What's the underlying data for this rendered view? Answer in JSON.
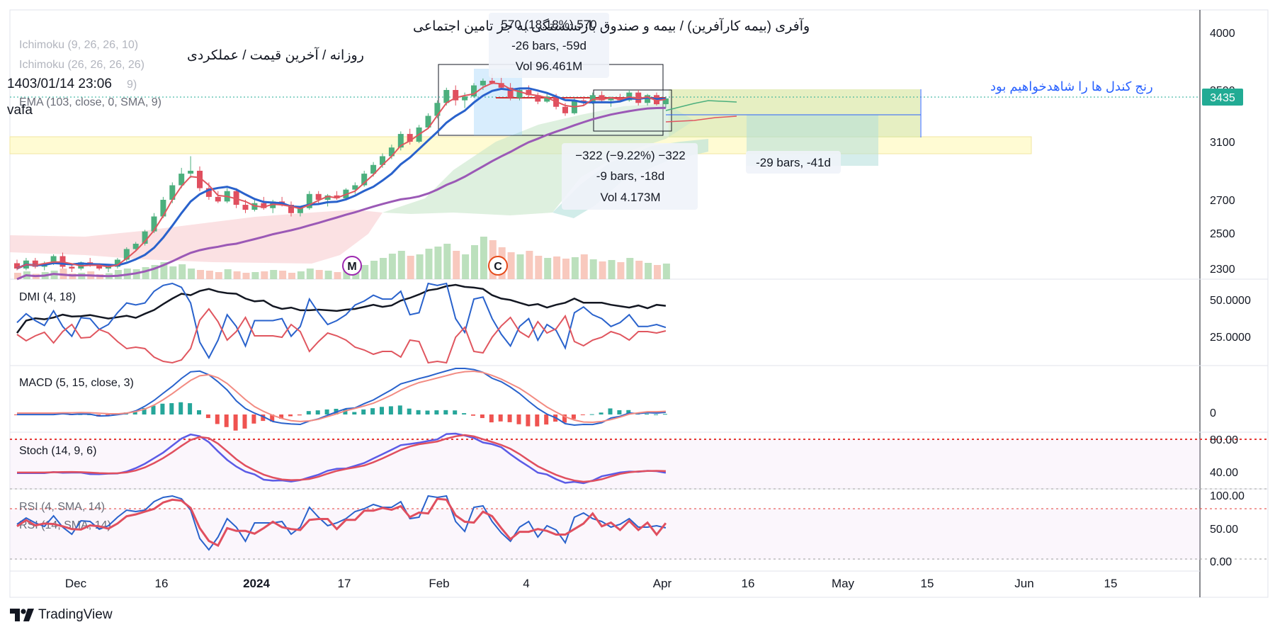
{
  "header": {
    "title": "وآفری (بیمه کارآفرین) / بیمه و صندوق بازنشستگی به جز تامین اجتماعی",
    "subtitle": "روزانه / آخرین قیمت / عملکردی",
    "datetime": "1403/01/14 23:06",
    "author": "vafa",
    "indicator_ichimoku_1": "Ichimoku (9, 26, 26, 10)",
    "indicator_ichimoku_2": "Ichimoku (26, 26, 26, 26)",
    "indicator_ema": "EMA (103, close, 0, SMA, 9)",
    "ema_value_hint": "9)"
  },
  "price_axis": {
    "ticks": [
      "4000",
      "3500",
      "3100",
      "2700",
      "2500",
      "2300"
    ],
    "tick_values": [
      4000,
      3500,
      3100,
      2700,
      2500,
      2300
    ],
    "current_price": "3435",
    "current_price_color": "#22ab94"
  },
  "time_axis": {
    "ticks": [
      "Dec",
      "16",
      "2024",
      "17",
      "Feb",
      "4",
      "Apr",
      "16",
      "May",
      "15",
      "Jun",
      "15"
    ]
  },
  "annotations": {
    "measure_up": {
      "line1": "570 (18.18%) 570",
      "line2": "-26 bars, -59d",
      "line3": "Vol 96.461M"
    },
    "measure_down": {
      "line1": "−322 (−9.22%) −322",
      "line2": "-9 bars, -18d",
      "line3": "Vol 4.173M"
    },
    "measure_range": "-29 bars, -41d",
    "note_text": "رنج کندل ها را شاهدخواهیم بود",
    "marker_m": "M",
    "marker_c": "C"
  },
  "panes": {
    "dmi": {
      "label": "DMI (4, 18)",
      "ticks": [
        "50.0000",
        "25.0000"
      ]
    },
    "macd": {
      "label": "MACD (5, 15, close, 3)",
      "ticks": [
        "0"
      ]
    },
    "stoch": {
      "label": "Stoch (14, 9, 6)",
      "ticks": [
        "80.00",
        "40.00"
      ]
    },
    "rsi": {
      "label1": "RSI (4, SMA, 14)",
      "label2": "RSI (14, SMA, 14)",
      "ticks": [
        "100.00",
        "50.00",
        "0.00"
      ]
    }
  },
  "footer": {
    "brand": "TradingView"
  },
  "colors": {
    "up": "#4caf7d",
    "down": "#e04f5f",
    "tenkan": "#e0565f",
    "kijun": "#2962cc",
    "ema": "#9b59b6",
    "note": "#2962ff"
  },
  "chart_data": {
    "type": "candlestick",
    "symbol": "وآفری (بیمه کارآفرین)",
    "timeframe": "روزانه",
    "y_axis_ticks": [
      2300,
      2500,
      2700,
      3100,
      3500,
      4000
    ],
    "last_price": 3435,
    "x_tick_labels": [
      "Dec",
      "16",
      "2024",
      "17",
      "Feb",
      "4",
      "Apr",
      "16",
      "May",
      "15",
      "Jun",
      "15"
    ],
    "ohlc": [
      [
        2330,
        2350,
        2290,
        2300
      ],
      [
        2300,
        2360,
        2290,
        2345
      ],
      [
        2345,
        2360,
        2300,
        2310
      ],
      [
        2310,
        2340,
        2290,
        2330
      ],
      [
        2330,
        2380,
        2320,
        2370
      ],
      [
        2370,
        2390,
        2300,
        2310
      ],
      [
        2310,
        2330,
        2280,
        2300
      ],
      [
        2300,
        2340,
        2290,
        2335
      ],
      [
        2335,
        2360,
        2310,
        2320
      ],
      [
        2320,
        2330,
        2290,
        2300
      ],
      [
        2300,
        2320,
        2280,
        2310
      ],
      [
        2310,
        2360,
        2300,
        2350
      ],
      [
        2350,
        2420,
        2340,
        2410
      ],
      [
        2410,
        2450,
        2400,
        2440
      ],
      [
        2440,
        2520,
        2430,
        2510
      ],
      [
        2510,
        2620,
        2500,
        2600
      ],
      [
        2600,
        2720,
        2590,
        2700
      ],
      [
        2700,
        2820,
        2680,
        2800
      ],
      [
        2800,
        2920,
        2780,
        2880
      ],
      [
        2880,
        3000,
        2850,
        2900
      ],
      [
        2900,
        2930,
        2760,
        2780
      ],
      [
        2780,
        2820,
        2700,
        2720
      ],
      [
        2720,
        2760,
        2680,
        2690
      ],
      [
        2690,
        2780,
        2680,
        2760
      ],
      [
        2760,
        2780,
        2650,
        2670
      ],
      [
        2670,
        2700,
        2620,
        2640
      ],
      [
        2640,
        2700,
        2630,
        2680
      ],
      [
        2680,
        2720,
        2640,
        2650
      ],
      [
        2650,
        2700,
        2620,
        2690
      ],
      [
        2690,
        2720,
        2660,
        2670
      ],
      [
        2670,
        2690,
        2600,
        2620
      ],
      [
        2620,
        2660,
        2600,
        2650
      ],
      [
        2650,
        2760,
        2640,
        2740
      ],
      [
        2740,
        2760,
        2680,
        2700
      ],
      [
        2700,
        2740,
        2660,
        2730
      ],
      [
        2730,
        2760,
        2700,
        2710
      ],
      [
        2710,
        2780,
        2700,
        2770
      ],
      [
        2770,
        2820,
        2740,
        2800
      ],
      [
        2800,
        2900,
        2790,
        2880
      ],
      [
        2880,
        2960,
        2860,
        2940
      ],
      [
        2940,
        3020,
        2920,
        3000
      ],
      [
        3000,
        3080,
        2980,
        3060
      ],
      [
        3060,
        3180,
        3040,
        3160
      ],
      [
        3160,
        3200,
        3080,
        3100
      ],
      [
        3100,
        3230,
        3090,
        3210
      ],
      [
        3210,
        3320,
        3200,
        3300
      ],
      [
        3300,
        3420,
        3280,
        3400
      ],
      [
        3400,
        3520,
        3380,
        3500
      ],
      [
        3500,
        3540,
        3380,
        3420
      ],
      [
        3420,
        3480,
        3360,
        3450
      ],
      [
        3450,
        3560,
        3440,
        3540
      ],
      [
        3540,
        3600,
        3500,
        3580
      ],
      [
        3580,
        3640,
        3550,
        3560
      ],
      [
        3560,
        3620,
        3500,
        3520
      ],
      [
        3520,
        3560,
        3420,
        3440
      ],
      [
        3440,
        3520,
        3420,
        3500
      ],
      [
        3500,
        3540,
        3440,
        3460
      ],
      [
        3460,
        3480,
        3390,
        3410
      ],
      [
        3410,
        3470,
        3400,
        3450
      ],
      [
        3450,
        3470,
        3350,
        3370
      ],
      [
        3370,
        3400,
        3300,
        3320
      ],
      [
        3320,
        3440,
        3310,
        3420
      ],
      [
        3420,
        3450,
        3380,
        3400
      ],
      [
        3400,
        3480,
        3390,
        3460
      ],
      [
        3460,
        3490,
        3400,
        3420
      ],
      [
        3420,
        3450,
        3370,
        3440
      ],
      [
        3440,
        3470,
        3410,
        3420
      ],
      [
        3420,
        3500,
        3410,
        3480
      ],
      [
        3480,
        3500,
        3380,
        3400
      ],
      [
        3400,
        3470,
        3380,
        3460
      ],
      [
        3460,
        3480,
        3380,
        3390
      ],
      [
        3390,
        3450,
        3360,
        3435
      ]
    ],
    "volume": [
      18,
      22,
      15,
      20,
      24,
      30,
      16,
      18,
      22,
      14,
      17,
      26,
      30,
      28,
      34,
      40,
      48,
      36,
      42,
      30,
      26,
      24,
      20,
      28,
      22,
      18,
      20,
      22,
      26,
      24,
      18,
      22,
      30,
      26,
      24,
      20,
      28,
      34,
      40,
      52,
      60,
      72,
      80,
      66,
      70,
      86,
      92,
      100,
      80,
      70,
      96,
      120,
      110,
      90,
      76,
      70,
      80,
      66,
      60,
      64,
      58,
      62,
      70,
      56,
      50,
      54,
      48,
      60,
      52,
      46,
      40,
      44
    ]
  }
}
